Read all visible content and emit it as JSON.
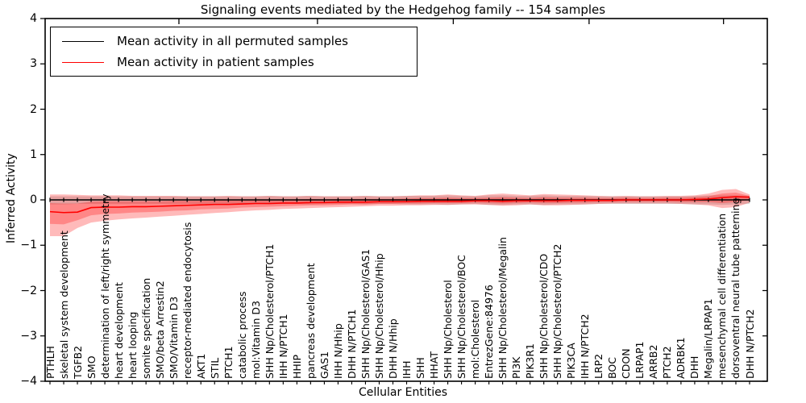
{
  "title": "Signaling events mediated by the Hedgehog family -- 154 samples",
  "legend": {
    "entries": [
      {
        "label": "Mean activity in all permuted samples",
        "color": "#000000"
      },
      {
        "label": "Mean activity in patient samples",
        "color": "#ff0000"
      }
    ]
  },
  "colors": {
    "patient_line": "#ff0000",
    "permuted_line": "#000000",
    "patient_band": "rgba(255,0,0,0.27)",
    "permuted_band": "rgba(110,110,110,0.24)",
    "axis": "#000000"
  },
  "chart_data": {
    "type": "line",
    "title": "Signaling events mediated by the Hedgehog family -- 154 samples",
    "xlabel": "Cellular Entities",
    "ylabel": "Inferred Activity",
    "ylim": [
      -4,
      4
    ],
    "grid": false,
    "legend_position": "upper left",
    "yticks": [
      {
        "label": "4",
        "value": 4
      },
      {
        "label": "3",
        "value": 3
      },
      {
        "label": "2",
        "value": 2
      },
      {
        "label": "1",
        "value": 1
      },
      {
        "label": "0",
        "value": 0
      },
      {
        "label": "−1",
        "value": -1
      },
      {
        "label": "−2",
        "value": -2
      },
      {
        "label": "−3",
        "value": -3
      },
      {
        "label": "−4",
        "value": -4
      }
    ],
    "categories": [
      "PTHLH",
      "skeletal system development",
      "TGFB2",
      "SMO",
      "determination of left/right symmetry",
      "heart development",
      "heart looping",
      "somite specification",
      "SMO/beta Arrestin2",
      "SMO/Vitamin D3",
      "receptor-mediated endocytosis",
      "AKT1",
      "STIL",
      "PTCH1",
      "catabolic process",
      "mol:Vitamin D3",
      "SHH Np/Cholesterol/PTCH1",
      "IHH N/PTCH1",
      "HHIP",
      "pancreas development",
      "GAS1",
      "IHH N/Hhip",
      "DHH N/PTCH1",
      "SHH Np/Cholesterol/GAS1",
      "SHH Np/Cholesterol/Hhip",
      "DHH N/Hhip",
      "IHH",
      "SHH",
      "HHAT",
      "SHH Np/Cholesterol",
      "SHH Np/Cholesterol/BOC",
      "mol:Cholesterol",
      "EntrezGene:84976",
      "SHH Np/Cholesterol/Megalin",
      "PI3K",
      "PIK3R1",
      "SHH Np/Cholesterol/CDO",
      "SHH Np/Cholesterol/PTCH2",
      "PIK3CA",
      "IHH N/PTCH2",
      "LRP2",
      "BOC",
      "CDON",
      "LRPAP1",
      "ARRB2",
      "PTCH2",
      "ADRBK1",
      "DHH",
      "Megalin/LRPAP1",
      "mesenchymal cell differentiation",
      "dorsoventral neural tube patterning",
      "DHH N/PTCH2"
    ],
    "series": [
      {
        "name": "Mean activity in all permuted samples",
        "color": "#000000",
        "marker": "tick",
        "values": [
          0,
          0,
          0,
          0,
          0,
          0,
          0,
          0,
          0,
          0,
          0,
          0,
          0,
          0,
          0,
          0,
          0,
          0,
          0,
          0,
          0,
          0,
          0,
          0,
          0,
          0,
          0,
          0,
          0,
          0,
          0,
          0,
          0,
          0,
          0,
          0,
          0,
          0,
          0,
          0,
          0,
          0,
          0,
          0,
          0,
          0,
          0,
          0,
          0,
          0,
          0,
          0
        ]
      },
      {
        "name": "Mean activity in patient samples",
        "color": "#ff0000",
        "marker": "none",
        "values": [
          -0.26,
          -0.28,
          -0.27,
          -0.17,
          -0.16,
          -0.16,
          -0.15,
          -0.15,
          -0.14,
          -0.13,
          -0.12,
          -0.11,
          -0.1,
          -0.1,
          -0.09,
          -0.08,
          -0.08,
          -0.07,
          -0.07,
          -0.06,
          -0.06,
          -0.05,
          -0.05,
          -0.05,
          -0.04,
          -0.04,
          -0.04,
          -0.03,
          -0.03,
          -0.03,
          -0.03,
          -0.02,
          -0.02,
          -0.03,
          -0.02,
          -0.02,
          -0.02,
          -0.02,
          -0.01,
          -0.01,
          -0.01,
          -0.01,
          0.0,
          0.0,
          0.0,
          0.0,
          0.0,
          0.01,
          0.02,
          0.05,
          0.07,
          0.06
        ]
      }
    ],
    "bands": [
      {
        "name": "permuted-range-band",
        "color": "rgba(110,110,110,0.24)",
        "lower": [
          -0.1,
          -0.1,
          -0.09,
          -0.09,
          -0.09,
          -0.09,
          -0.09,
          -0.09,
          -0.09,
          -0.09,
          -0.09,
          -0.09,
          -0.09,
          -0.1,
          -0.09,
          -0.09,
          -0.1,
          -0.09,
          -0.09,
          -0.1,
          -0.09,
          -0.09,
          -0.09,
          -0.1,
          -0.09,
          -0.09,
          -0.1,
          -0.1,
          -0.1,
          -0.11,
          -0.1,
          -0.09,
          -0.11,
          -0.11,
          -0.1,
          -0.1,
          -0.11,
          -0.1,
          -0.1,
          -0.1,
          -0.09,
          -0.09,
          -0.09,
          -0.09,
          -0.09,
          -0.09,
          -0.09,
          -0.1,
          -0.1,
          -0.11,
          -0.1,
          -0.09
        ],
        "upper": [
          0.08,
          0.08,
          0.08,
          0.08,
          0.08,
          0.08,
          0.08,
          0.08,
          0.08,
          0.08,
          0.08,
          0.08,
          0.08,
          0.08,
          0.08,
          0.08,
          0.09,
          0.08,
          0.08,
          0.09,
          0.08,
          0.08,
          0.08,
          0.09,
          0.08,
          0.08,
          0.09,
          0.09,
          0.09,
          0.1,
          0.09,
          0.08,
          0.1,
          0.1,
          0.09,
          0.09,
          0.1,
          0.09,
          0.09,
          0.09,
          0.08,
          0.08,
          0.08,
          0.08,
          0.08,
          0.08,
          0.08,
          0.09,
          0.1,
          0.1,
          0.1,
          0.09
        ]
      },
      {
        "name": "patient-outer-band",
        "color": "rgba(255,0,0,0.27)",
        "lower": [
          -0.8,
          -0.8,
          -0.62,
          -0.5,
          -0.46,
          -0.43,
          -0.41,
          -0.39,
          -0.37,
          -0.35,
          -0.33,
          -0.31,
          -0.29,
          -0.27,
          -0.25,
          -0.23,
          -0.22,
          -0.2,
          -0.19,
          -0.18,
          -0.17,
          -0.16,
          -0.15,
          -0.14,
          -0.13,
          -0.13,
          -0.12,
          -0.12,
          -0.11,
          -0.11,
          -0.1,
          -0.1,
          -0.11,
          -0.13,
          -0.12,
          -0.1,
          -0.12,
          -0.12,
          -0.11,
          -0.1,
          -0.09,
          -0.08,
          -0.08,
          -0.08,
          -0.08,
          -0.08,
          -0.09,
          -0.1,
          -0.12,
          -0.18,
          -0.16,
          -0.06
        ],
        "upper": [
          0.12,
          0.12,
          0.11,
          0.1,
          0.1,
          0.1,
          0.09,
          0.09,
          0.09,
          0.09,
          0.08,
          0.08,
          0.08,
          0.09,
          0.08,
          0.08,
          0.09,
          0.08,
          0.08,
          0.09,
          0.08,
          0.08,
          0.08,
          0.09,
          0.08,
          0.08,
          0.09,
          0.1,
          0.1,
          0.12,
          0.1,
          0.09,
          0.12,
          0.14,
          0.12,
          0.1,
          0.13,
          0.12,
          0.11,
          0.1,
          0.09,
          0.08,
          0.09,
          0.08,
          0.08,
          0.09,
          0.09,
          0.1,
          0.14,
          0.22,
          0.24,
          0.12
        ]
      },
      {
        "name": "patient-inner-band",
        "color": "rgba(255,0,0,0.27)",
        "lower": [
          -0.53,
          -0.54,
          -0.45,
          -0.34,
          -0.31,
          -0.3,
          -0.28,
          -0.27,
          -0.26,
          -0.24,
          -0.23,
          -0.21,
          -0.2,
          -0.19,
          -0.17,
          -0.16,
          -0.15,
          -0.14,
          -0.13,
          -0.12,
          -0.12,
          -0.11,
          -0.1,
          -0.1,
          -0.09,
          -0.09,
          -0.08,
          -0.08,
          -0.07,
          -0.07,
          -0.07,
          -0.06,
          -0.07,
          -0.08,
          -0.07,
          -0.06,
          -0.07,
          -0.07,
          -0.06,
          -0.06,
          -0.05,
          -0.05,
          -0.04,
          -0.04,
          -0.04,
          -0.04,
          -0.05,
          -0.05,
          -0.05,
          -0.07,
          -0.05,
          0.0
        ],
        "upper": [
          -0.07,
          -0.08,
          -0.08,
          -0.04,
          -0.03,
          -0.03,
          -0.03,
          -0.03,
          -0.03,
          -0.02,
          -0.02,
          -0.02,
          -0.01,
          0.0,
          -0.01,
          0.0,
          0.01,
          0.01,
          0.01,
          0.02,
          0.01,
          0.02,
          0.02,
          0.02,
          0.02,
          0.02,
          0.03,
          0.04,
          0.04,
          0.05,
          0.04,
          0.04,
          0.05,
          0.06,
          0.05,
          0.04,
          0.06,
          0.05,
          0.05,
          0.05,
          0.04,
          0.04,
          0.05,
          0.04,
          0.04,
          0.05,
          0.05,
          0.06,
          0.08,
          0.14,
          0.16,
          0.09
        ]
      }
    ]
  }
}
